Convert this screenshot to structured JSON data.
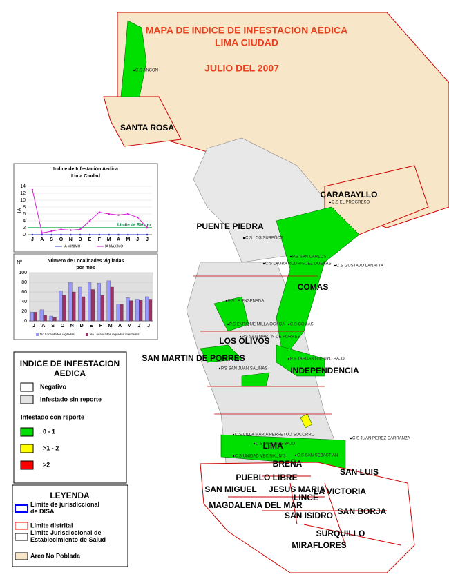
{
  "title": {
    "line1": "MAPA DE INDICE DE INFESTACION AEDICA",
    "line2": "LIMA CIUDAD",
    "date": "JULIO DEL 2007"
  },
  "districts": [
    "SANTA ROSA",
    "CARABAYLLO",
    "PUENTE PIEDRA",
    "COMAS",
    "LOS OLIVOS",
    "SAN MARTIN DE PORRES",
    "INDEPENDENCIA",
    "LIMA",
    "BREÑA",
    "SAN LUIS",
    "PUEBLO LIBRE",
    "SAN MIGUEL",
    "JESUS MARIA",
    "LINCE",
    "LA VICTORIA",
    "MAGDALENA DEL MAR",
    "SAN ISIDRO",
    "SAN BORJA",
    "SURQUILLO",
    "MIRAFLORES"
  ],
  "health_centers": [
    "C.S ANCON",
    "C.S EL PROGRESO",
    "C.S LOS SUREÑOS",
    "P.S SAN CARLOS",
    "C.S LAURA RODRIGUEZ DUEÑAS",
    "C.S GUSTAVO LANATTA",
    "P.S LA ENSENADA",
    "C.S COMAS",
    "P.S ENRIQUE MILLA OCHOA",
    "P.S SAN MARTIN DE PORRES",
    "P.S SAN JUAN SALINAS",
    "P.S TAHUANTINSUYO BAJO",
    "C.S VILLA MARIA PERPETUO SOCORRO",
    "C.S MIRONES BAJO",
    "C.S UNIDAD VECINAL N°3",
    "C.S SAN SEBASTIAN",
    "C.S JUAN PEREZ CARRANZA"
  ],
  "legend_index": {
    "title": [
      "INDICE DE INFESTACION",
      "AEDICA"
    ],
    "negative": "Negativo",
    "no_report": "Infestado sin reporte",
    "with_report": "Infestado con reporte",
    "ranges": [
      "0 - 1",
      ">1 - 2",
      ">2"
    ],
    "range_colors": [
      "#00e000",
      "#ffff00",
      "#ff0000"
    ]
  },
  "legend_limits": {
    "title": "LEYENDA",
    "items": [
      "Limite de jurisdiccional de DISA",
      "Limite distrital",
      "Limite Jurisdiccional de Establecimiento de Salud",
      "Area No Poblada"
    ]
  },
  "charts": [
    {
      "type": "line",
      "title": [
        "Indice de Infestación Aedica",
        "Lima Ciudad"
      ],
      "y_label": "IA",
      "categories": [
        "J",
        "A",
        "S",
        "O",
        "N",
        "D",
        "E",
        "F",
        "M",
        "A",
        "M",
        "J",
        "J"
      ],
      "ylim": [
        0,
        14
      ],
      "yticks": [
        0,
        2,
        4,
        6,
        8,
        10,
        12,
        14
      ],
      "risk_threshold": 2,
      "risk_label": "Limite de Riesgo",
      "series": [
        {
          "name": "IA MINIMO",
          "color": "#3030c0",
          "values": [
            0,
            0,
            0,
            0,
            0,
            0,
            0,
            0,
            0,
            0,
            0,
            0,
            0
          ]
        },
        {
          "name": "IA MAXIMO",
          "color": "#d020d0",
          "values": [
            13,
            0.5,
            1,
            1.5,
            1.3,
            1.5,
            4,
            6.5,
            6,
            5.7,
            6,
            5,
            2
          ]
        }
      ]
    },
    {
      "type": "bar",
      "title": [
        "Número de Localidades vigiladas",
        "por mes"
      ],
      "y_label": "Nº",
      "categories": [
        "J",
        "A",
        "S",
        "O",
        "N",
        "D",
        "E",
        "F",
        "M",
        "A",
        "M",
        "J",
        "J"
      ],
      "ylim": [
        0,
        100
      ],
      "yticks": [
        0,
        20,
        40,
        60,
        80,
        100
      ],
      "series": [
        {
          "name": "No Localidades vigiladas",
          "color": "#9999ff",
          "values": [
            18,
            23,
            10,
            62,
            80,
            70,
            80,
            78,
            83,
            35,
            48,
            45,
            50
          ]
        },
        {
          "name": "No Localidades vigiladas infestadas",
          "color": "#993366",
          "values": [
            18,
            12,
            7,
            53,
            60,
            50,
            65,
            53,
            70,
            35,
            42,
            43,
            45
          ]
        }
      ]
    }
  ]
}
